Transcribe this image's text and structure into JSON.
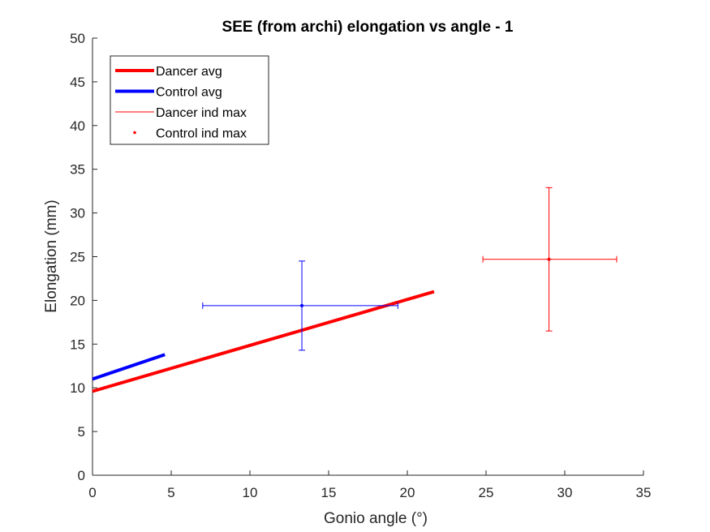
{
  "chart_data": {
    "type": "line",
    "title": "SEE (from archi) elongation vs angle - 1",
    "xlabel": "Gonio angle (°)",
    "ylabel": "Elongation (mm)",
    "xlim": [
      0,
      35
    ],
    "ylim": [
      0,
      50
    ],
    "x_ticks": [
      0,
      5,
      10,
      15,
      20,
      25,
      30,
      35
    ],
    "y_ticks": [
      0,
      5,
      10,
      15,
      20,
      25,
      30,
      35,
      40,
      45,
      50
    ],
    "grid": false,
    "legend_position": "top-left",
    "series": [
      {
        "name": "Dancer avg",
        "kind": "line",
        "color": "#ff0000",
        "x": [
          0,
          21.7
        ],
        "y": [
          9.6,
          21.0
        ]
      },
      {
        "name": "Control avg",
        "kind": "line",
        "color": "#0000ff",
        "x": [
          0,
          4.6
        ],
        "y": [
          11.0,
          13.8
        ]
      },
      {
        "name": "Dancer ind max",
        "kind": "errorbar",
        "color": "#ff0000",
        "x": 29.0,
        "y": 24.7,
        "x_range": [
          24.8,
          33.3
        ],
        "y_range": [
          16.5,
          32.9
        ]
      },
      {
        "name": "Control ind max",
        "kind": "errorbar",
        "color": "#0000ff",
        "x": 13.3,
        "y": 19.4,
        "x_range": [
          7.0,
          19.4
        ],
        "y_range": [
          14.3,
          24.5
        ]
      }
    ]
  }
}
